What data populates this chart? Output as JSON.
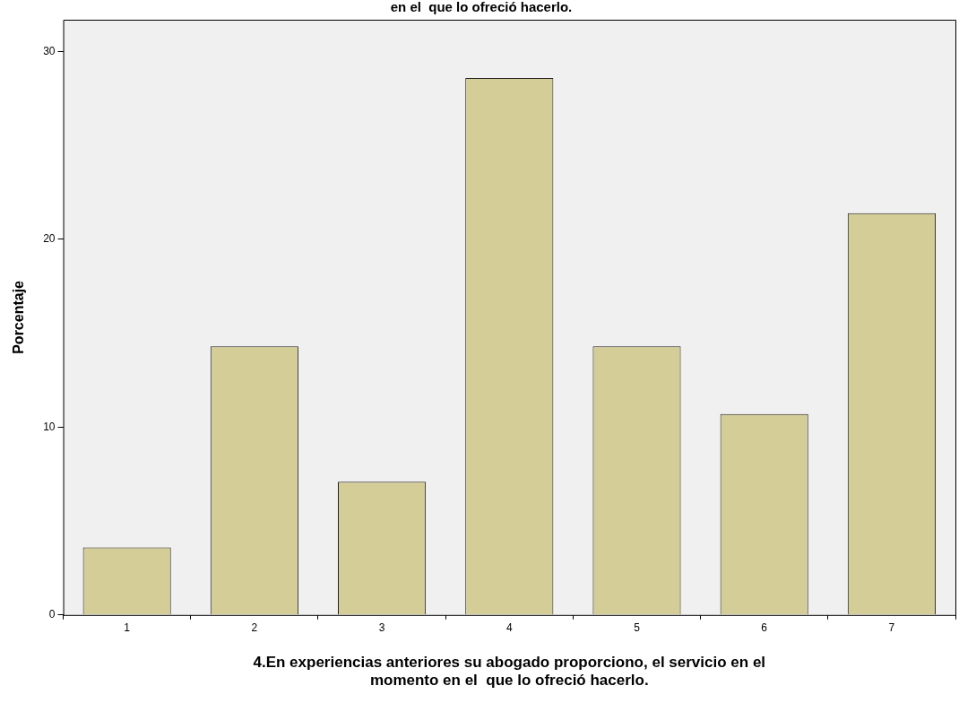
{
  "chart_data": {
    "type": "bar",
    "title": "en el  que lo ofreció hacerlo.",
    "xlabel": "4.En experiencias anteriores su abogado proporciono, el servicio en el momento en el  que lo ofreció hacerlo.",
    "ylabel": "Porcentaje",
    "categories": [
      "1",
      "2",
      "3",
      "4",
      "5",
      "6",
      "7"
    ],
    "values": [
      3.6,
      14.3,
      7.1,
      28.6,
      14.3,
      10.7,
      21.4
    ],
    "color": "#d4cd98",
    "ylim": [
      0,
      31.7
    ],
    "yticks": [
      0,
      10,
      20,
      30
    ],
    "grid": false,
    "legend": false
  }
}
